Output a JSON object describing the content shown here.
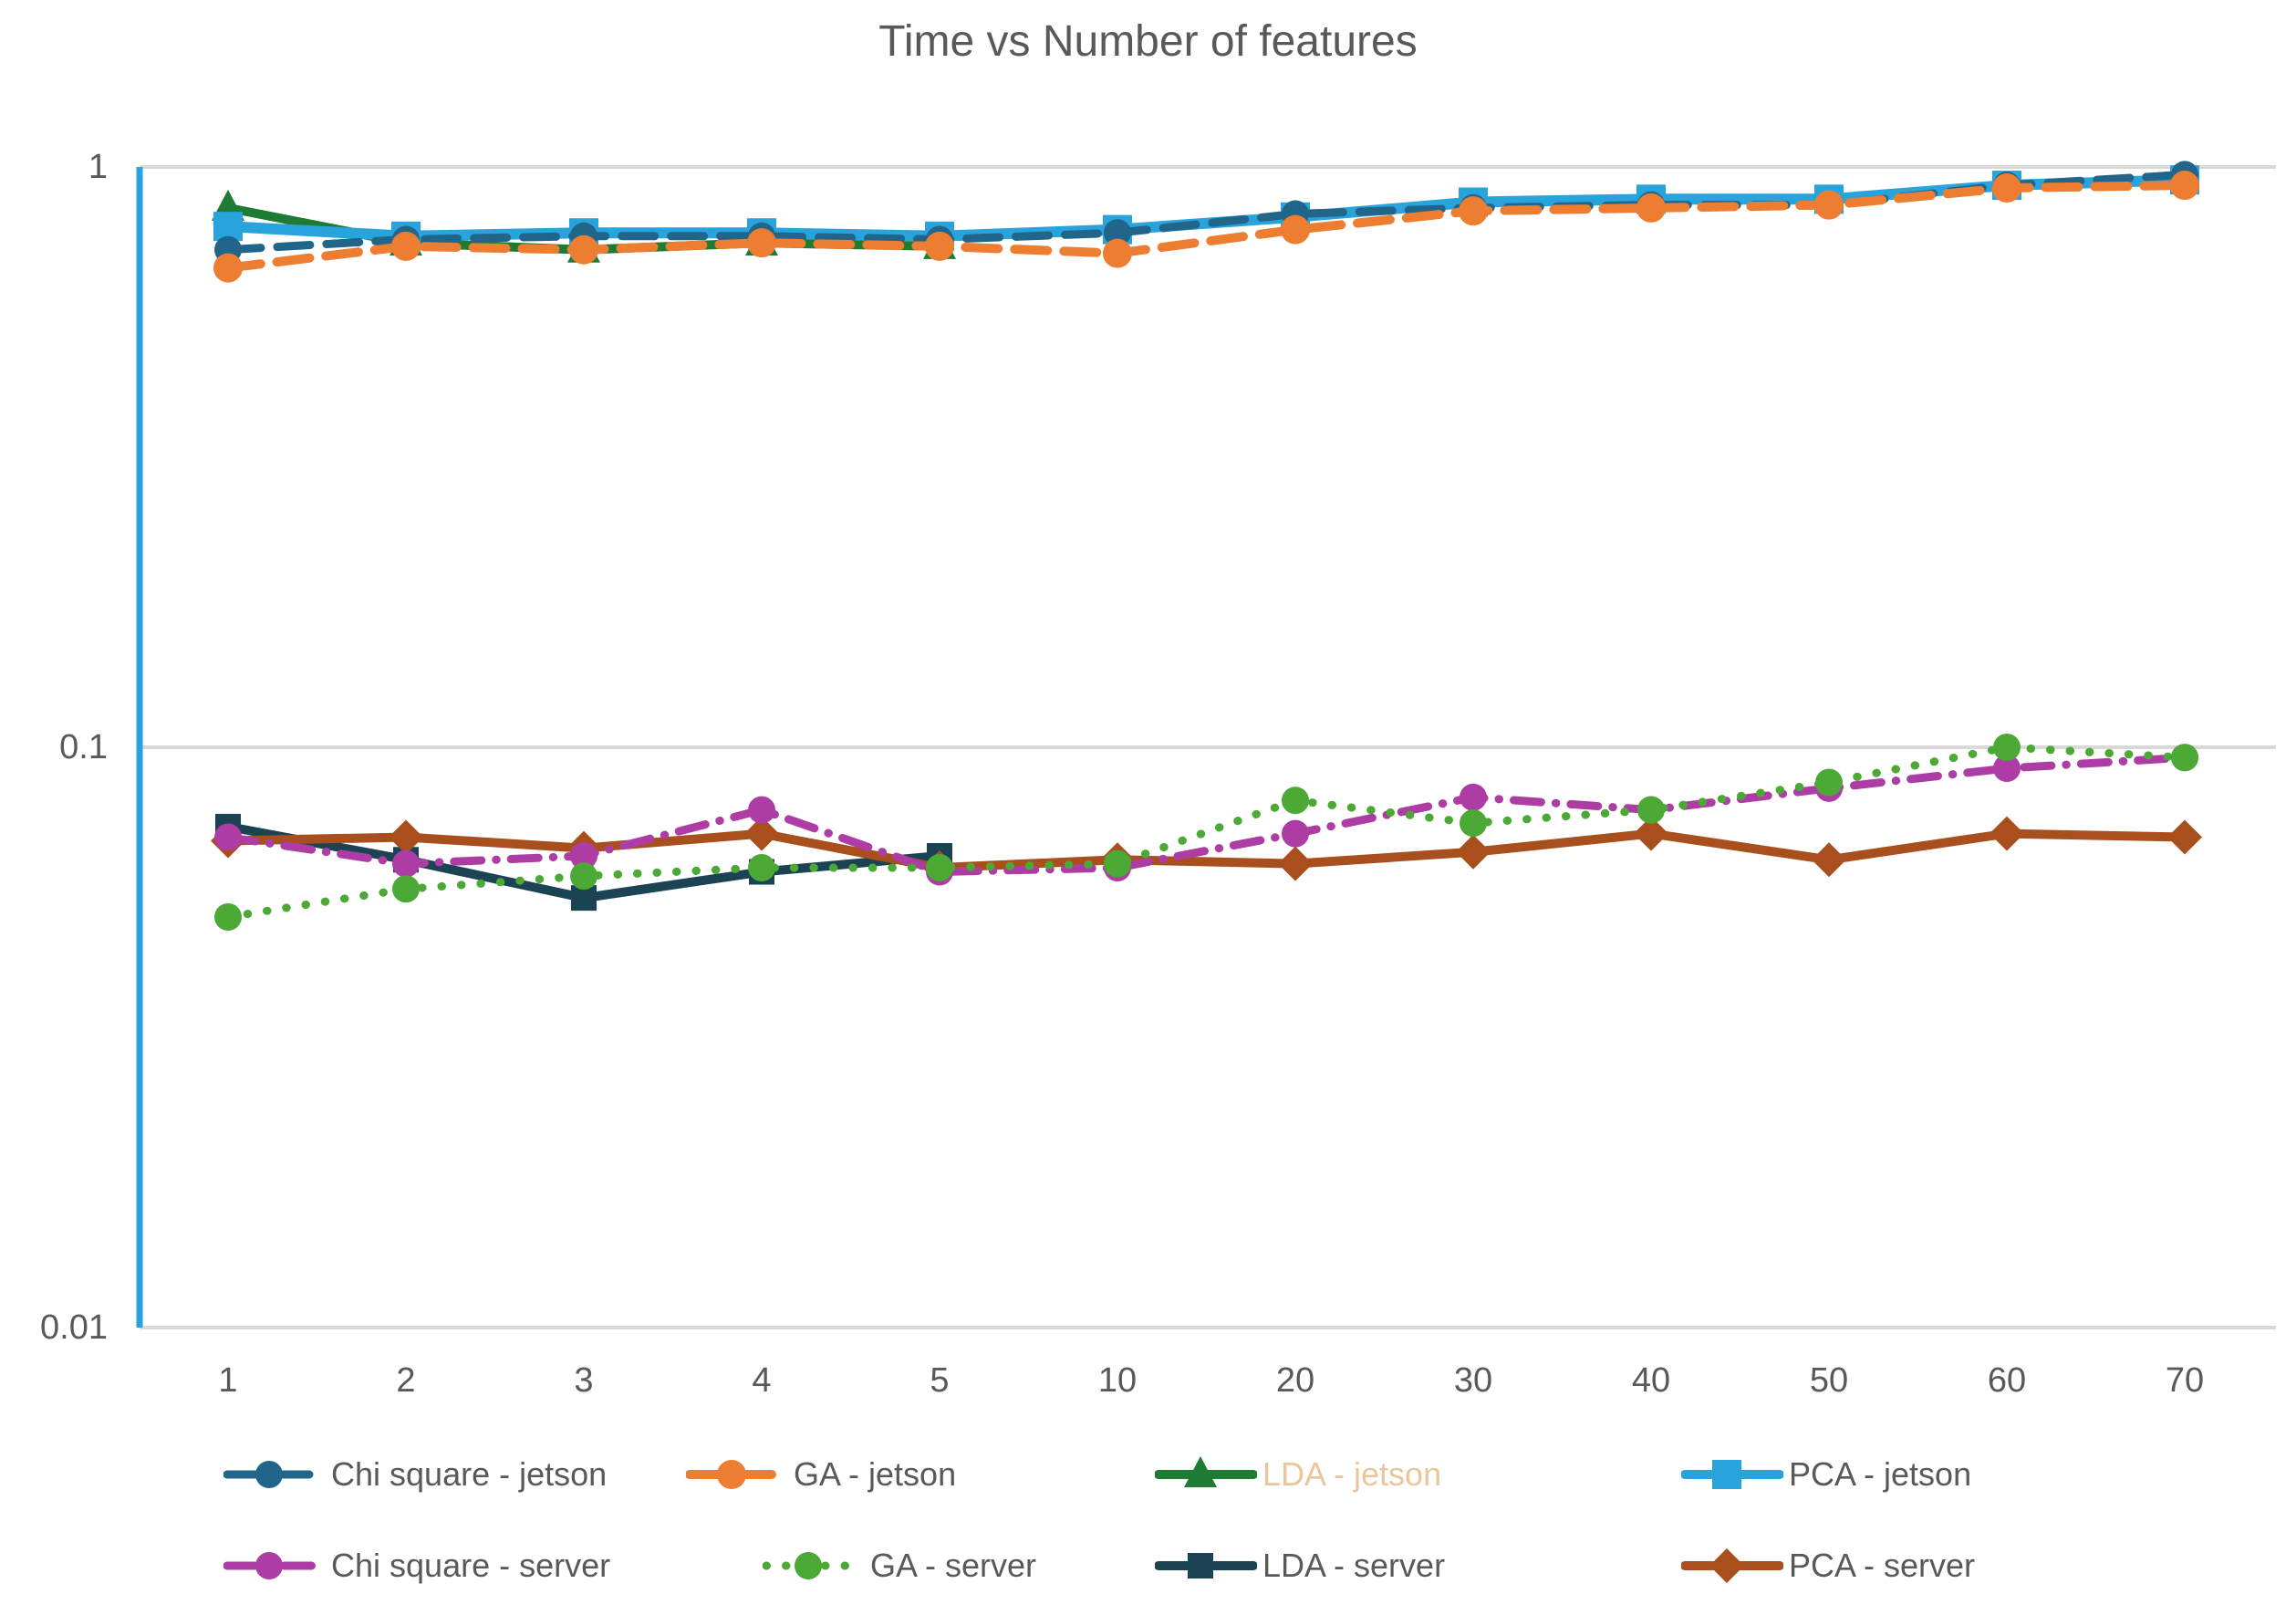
{
  "chart_data": {
    "type": "line",
    "title": "Time vs Number of features",
    "x_categories": [
      "1",
      "2",
      "3",
      "4",
      "5",
      "10",
      "20",
      "30",
      "40",
      "50",
      "60",
      "70"
    ],
    "y_axis": {
      "scale": "log",
      "min": 0.01,
      "max": 1,
      "ticks": [
        {
          "label": "1",
          "value": 1
        },
        {
          "label": "0.1",
          "value": 0.1
        },
        {
          "label": "0.01",
          "value": 0.01
        }
      ]
    },
    "grid": true,
    "grid_color": "#D9D9D9",
    "axis_line_color": "#29A3DC",
    "text_color": "#595959",
    "legend_position": "bottom",
    "series": [
      {
        "name": "Chi square - jetson",
        "color": "#21658B",
        "label_color": "#595959",
        "line_style": "dashed",
        "stroke_width": 9,
        "marker": "circle",
        "marker_size": 15,
        "values": [
          0.72,
          0.75,
          0.76,
          0.76,
          0.75,
          0.77,
          0.83,
          0.85,
          0.86,
          0.86,
          0.93,
          0.97
        ]
      },
      {
        "name": "GA - jetson",
        "color": "#ED7D31",
        "label_color": "#595959",
        "line_style": "dashed",
        "stroke_width": 10,
        "marker": "circle",
        "marker_size": 16,
        "values": [
          0.67,
          0.73,
          0.72,
          0.74,
          0.73,
          0.71,
          0.78,
          0.84,
          0.85,
          0.86,
          0.92,
          0.93
        ]
      },
      {
        "name": "LDA - jetson",
        "color": "#1E7B34",
        "label_color": "#E9C79B",
        "line_style": "solid",
        "stroke_width": 10,
        "marker": "triangle",
        "marker_size": 18,
        "values": [
          0.85,
          0.74,
          0.72,
          0.74,
          0.73
        ]
      },
      {
        "name": "PCA - jetson",
        "color": "#29A3DC",
        "label_color": "#595959",
        "line_style": "solid",
        "stroke_width": 12,
        "marker": "square",
        "marker_size": 16,
        "values": [
          0.79,
          0.76,
          0.77,
          0.77,
          0.76,
          0.78,
          0.82,
          0.87,
          0.88,
          0.88,
          0.93,
          0.95
        ]
      },
      {
        "name": "Chi square - server",
        "color": "#AE3CA5",
        "label_color": "#595959",
        "line_style": "dash-dot",
        "stroke_width": 9,
        "marker": "circle",
        "marker_size": 15,
        "values": [
          0.07,
          0.063,
          0.065,
          0.078,
          0.061,
          0.062,
          0.071,
          0.082,
          0.078,
          0.085,
          0.092,
          0.096
        ]
      },
      {
        "name": "GA - server",
        "color": "#4CA935",
        "label_color": "#595959",
        "line_style": "dotted",
        "stroke_width": 9,
        "marker": "circle",
        "marker_size": 15,
        "values": [
          0.051,
          0.057,
          0.06,
          0.062,
          0.062,
          0.063,
          0.081,
          0.074,
          0.078,
          0.087,
          0.1,
          0.096
        ]
      },
      {
        "name": "LDA - server",
        "color": "#1B4353",
        "label_color": "#595959",
        "line_style": "solid",
        "stroke_width": 10,
        "marker": "square",
        "marker_size": 14,
        "values": [
          0.073,
          0.064,
          0.055,
          0.061,
          0.065
        ]
      },
      {
        "name": "PCA - server",
        "color": "#A94F1D",
        "label_color": "#595959",
        "line_style": "solid",
        "stroke_width": 10,
        "marker": "diamond",
        "marker_size": 17,
        "values": [
          0.069,
          0.07,
          0.067,
          0.071,
          0.062,
          0.064,
          0.063,
          0.066,
          0.071,
          0.064,
          0.071,
          0.07
        ]
      }
    ]
  }
}
